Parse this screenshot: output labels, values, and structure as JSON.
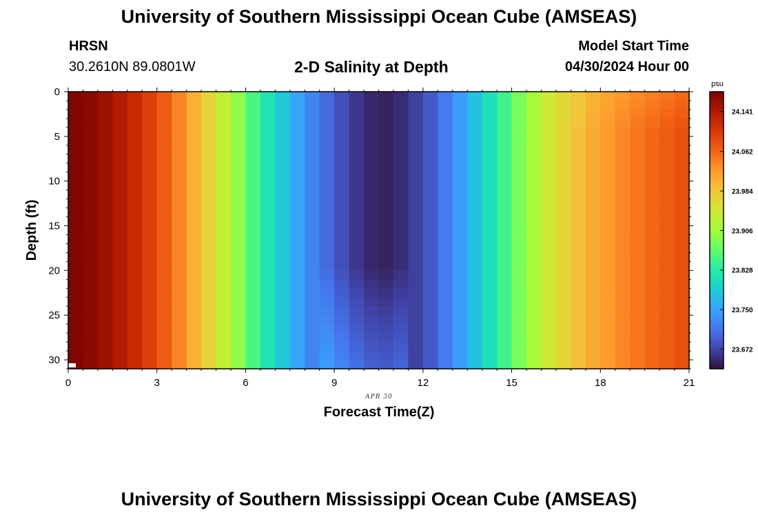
{
  "header": {
    "title": "University of Southern Mississippi Ocean Cube (AMSEAS)",
    "station_id": "HRSN",
    "coordinates": "30.2610N  89.0801W",
    "model_start_label": "Model Start Time",
    "model_start_value": "04/30/2024 Hour 00"
  },
  "footer": {
    "title": "University of Southern Mississippi Ocean Cube (AMSEAS)"
  },
  "chart_data": {
    "type": "heatmap",
    "title": "2-D Salinity at Depth",
    "xlabel": "Forecast Time(Z)",
    "ylabel": "Depth (ft)",
    "date_label": "APR 30",
    "xlim": [
      0,
      21
    ],
    "ylim": [
      31,
      0
    ],
    "x_ticks": [
      0,
      3,
      6,
      9,
      12,
      15,
      18,
      21
    ],
    "y_ticks": [
      0,
      5,
      10,
      15,
      20,
      25,
      30
    ],
    "column_step_hours": 0.5,
    "row_step_ft": 1,
    "colorbar": {
      "unit": "psu",
      "min": 23.633,
      "max": 24.18,
      "tick_values": [
        "24.141",
        "24.062",
        "23.984",
        "23.906",
        "23.828",
        "23.750",
        "23.672"
      ],
      "colormap": [
        "#30123b",
        "#4145ab",
        "#4675ed",
        "#39a2fc",
        "#1bcfd4",
        "#24eca6",
        "#61fc6c",
        "#a4fc3b",
        "#d1e834",
        "#f3c63a",
        "#fe9b2d",
        "#f36315",
        "#d93806",
        "#b11901",
        "#7a0402"
      ]
    },
    "salinity_time_profile": {
      "hours": [
        0,
        0.5,
        1,
        1.5,
        2,
        2.5,
        3,
        3.5,
        4,
        4.5,
        5,
        5.5,
        6,
        6.5,
        7,
        7.5,
        8,
        8.5,
        9,
        9.5,
        10,
        10.5,
        11,
        11.5,
        12,
        12.5,
        13,
        13.5,
        14,
        14.5,
        15,
        15.5,
        16,
        16.5,
        17,
        17.5,
        18,
        18.5,
        19,
        19.5,
        20,
        20.5
      ],
      "surface_psu": [
        24.176,
        24.168,
        24.155,
        24.138,
        24.118,
        24.095,
        24.07,
        24.04,
        24.004,
        23.968,
        23.93,
        23.893,
        23.853,
        23.818,
        23.783,
        23.753,
        23.725,
        23.702,
        23.68,
        23.662,
        23.65,
        23.646,
        23.654,
        23.668,
        23.69,
        23.716,
        23.745,
        23.778,
        23.812,
        23.846,
        23.88,
        23.912,
        23.94,
        23.966,
        23.989,
        24.008,
        24.024,
        24.038,
        24.05,
        24.06,
        24.07,
        24.08
      ]
    }
  }
}
